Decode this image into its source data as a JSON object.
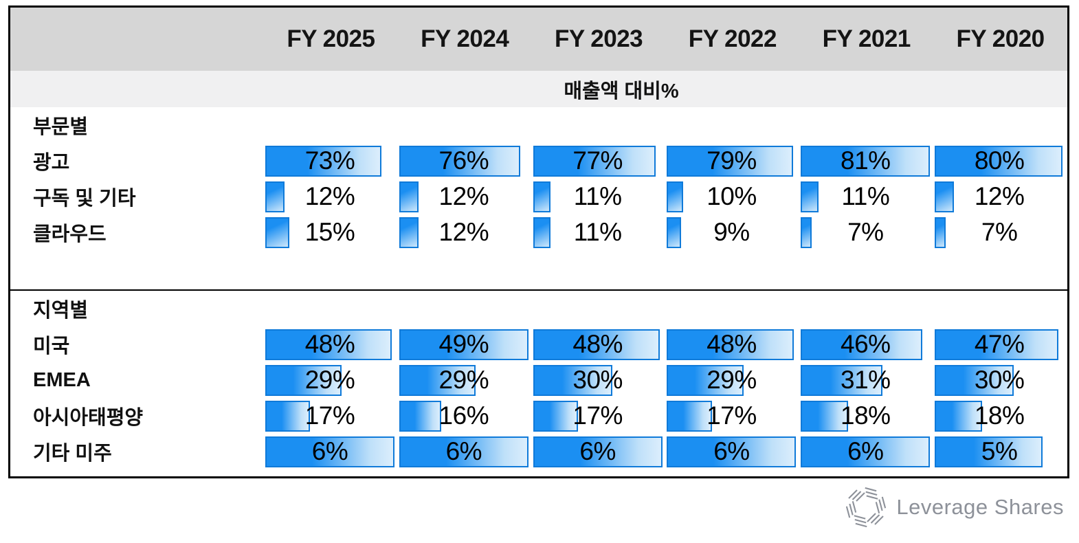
{
  "table": {
    "columns": [
      "FY 2025",
      "FY 2024",
      "FY 2023",
      "FY 2022",
      "FY 2021",
      "FY 2020"
    ],
    "subtitle": "매출액 대비%",
    "sections": [
      {
        "title": "부문별",
        "rows": [
          {
            "label": "광고",
            "values": [
              "73%",
              "76%",
              "77%",
              "79%",
              "81%",
              "80%"
            ],
            "bar_pcts": [
              90.1,
              93.8,
              95.1,
              97.5,
              100,
              98.8
            ]
          },
          {
            "label": "구독 및 기타",
            "values": [
              "12%",
              "12%",
              "11%",
              "10%",
              "11%",
              "12%"
            ],
            "bar_pcts": [
              14.8,
              14.8,
              13.6,
              12.3,
              13.6,
              14.8
            ]
          },
          {
            "label": "클라우드",
            "values": [
              "15%",
              "12%",
              "11%",
              "9%",
              "7%",
              "7%"
            ],
            "bar_pcts": [
              18.5,
              14.8,
              13.6,
              11.1,
              8.6,
              8.6
            ]
          }
        ]
      },
      {
        "title": "지역별",
        "rows": [
          {
            "label": "미국",
            "values": [
              "48%",
              "49%",
              "48%",
              "48%",
              "46%",
              "47%"
            ],
            "bar_pcts": [
              98,
              100,
              98,
              98,
              93.9,
              95.9
            ]
          },
          {
            "label": "EMEA",
            "values": [
              "29%",
              "29%",
              "30%",
              "29%",
              "31%",
              "30%"
            ],
            "bar_pcts": [
              59.2,
              59.2,
              61.2,
              59.2,
              63.3,
              61.2
            ]
          },
          {
            "label": "아시아태평양",
            "values": [
              "17%",
              "16%",
              "17%",
              "17%",
              "18%",
              "18%"
            ],
            "bar_pcts": [
              34.7,
              32.7,
              34.7,
              34.7,
              36.7,
              36.7
            ]
          },
          {
            "label": "기타 미주",
            "values": [
              "6%",
              "6%",
              "6%",
              "6%",
              "6%",
              "5%"
            ],
            "bar_pcts": [
              100,
              100,
              100,
              100,
              100,
              83.3
            ]
          }
        ]
      }
    ]
  },
  "chart_data": {
    "type": "bar",
    "title": "매출액 대비%",
    "unit": "%",
    "categories": [
      "FY 2025",
      "FY 2024",
      "FY 2023",
      "FY 2022",
      "FY 2021",
      "FY 2020"
    ],
    "sections": [
      {
        "name": "부문별",
        "series": [
          {
            "name": "광고",
            "values": [
              73,
              76,
              77,
              79,
              81,
              80
            ]
          },
          {
            "name": "구독 및 기타",
            "values": [
              12,
              12,
              11,
              10,
              11,
              12
            ]
          },
          {
            "name": "클라우드",
            "values": [
              15,
              12,
              11,
              9,
              7,
              7
            ]
          }
        ]
      },
      {
        "name": "지역별",
        "series": [
          {
            "name": "미국",
            "values": [
              48,
              49,
              48,
              48,
              46,
              47
            ]
          },
          {
            "name": "EMEA",
            "values": [
              29,
              29,
              30,
              29,
              31,
              30
            ]
          },
          {
            "name": "아시아태평양",
            "values": [
              17,
              16,
              17,
              17,
              18,
              18
            ]
          },
          {
            "name": "기타 미주",
            "values": [
              6,
              6,
              6,
              6,
              6,
              5
            ]
          }
        ]
      }
    ],
    "layout": {
      "orientation": "horizontal-bars-in-table",
      "value_labels": "centered",
      "grid": false,
      "legend": "none"
    }
  },
  "branding": {
    "logo_text": "Leverage Shares"
  },
  "colors": {
    "bar_fill": "#1b8ff2",
    "bar_fill_light": "#dceefc",
    "bar_border": "#0f7ad9",
    "header_bg": "#d6d6d6",
    "subtitle_bg": "#f0f0f1",
    "frame_border": "#000000",
    "logo_gray": "#8d9199",
    "text": "#111111"
  }
}
